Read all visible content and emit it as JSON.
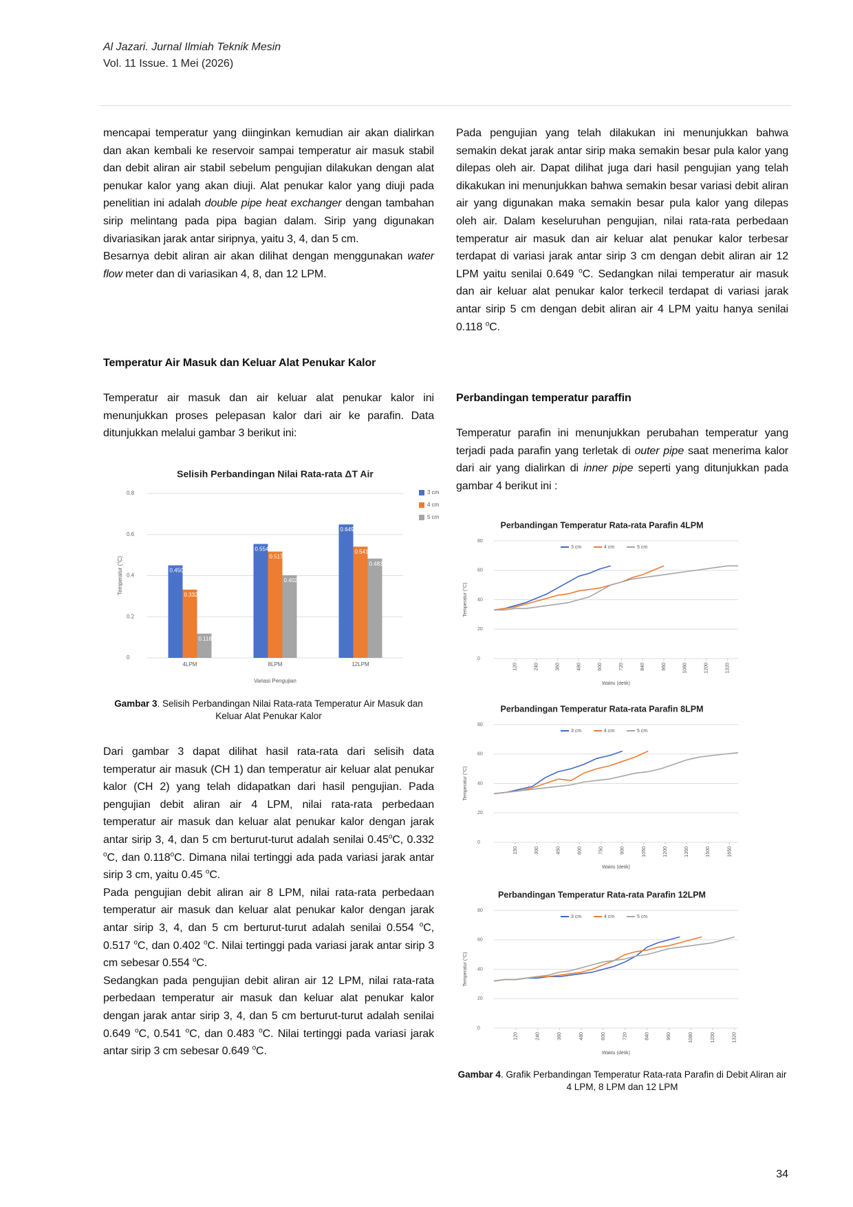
{
  "header": {
    "journal": "Al Jazari. Jurnal Ilmiah Teknik Mesin",
    "issue": "Vol. 11 Issue. 1 Mei (2026)"
  },
  "left": {
    "p1": [
      "mencapai temperatur yang diinginkan kemudian air akan dialirkan dan akan kembali ke reservoir sampai temperatur air masuk stabil dan debit aliran air stabil sebelum pengujian dilakukan dengan alat penukar kalor yang akan diuji. Alat penukar kalor yang diuji pada penelitian ini adalah ",
      "double pipe heat exchanger",
      " dengan tambahan sirip melintang pada pipa bagian dalam. Sirip yang digunakan divariasikan jarak antar siripnya, yaitu 3, 4, dan 5 cm."
    ],
    "p2": [
      "Besarnya debit aliran air akan dilihat dengan menggunakan ",
      "water flow",
      " meter dan di variasikan 4, 8, dan 12 LPM."
    ],
    "heading": "Temperatur Air Masuk dan Keluar Alat Penukar Kalor",
    "p3": "Temperatur air masuk dan air keluar alat penukar kalor ini menunjukkan proses pelepasan kalor dari air ke parafin. Data ditunjukkan melalui gambar 3 berikut ini:",
    "caption": [
      "Gambar 3",
      ". Selisih Perbandingan Nilai Rata-rata Temperatur Air Masuk dan Keluar Alat Penukar Kalor"
    ],
    "p4": [
      "Dari gambar 3 dapat dilihat hasil rata-rata dari selisih data temperatur air masuk (CH 1) dan temperatur air keluar alat penukar kalor (CH 2) yang telah didapatkan dari hasil pengujian. Pada pengujian debit aliran air 4 LPM, nilai rata-rata perbedaan temperatur air masuk dan keluar alat penukar kalor dengan jarak antar sirip 3, 4, dan 5 cm berturut-turut adalah senilai 0.45",
      "o",
      "C, 0.332 ",
      "o",
      "C, dan 0.118",
      "o",
      "C. Dimana nilai tertinggi ada pada variasi jarak antar sirip 3 cm, yaitu 0.45 ",
      "o",
      "C."
    ],
    "p5": [
      "Pada pengujian debit aliran air 8 LPM, nilai rata-rata perbedaan temperatur air masuk dan keluar alat penukar kalor dengan jarak antar sirip 3, 4, dan 5 cm berturut-turut adalah senilai 0.554 ",
      "o",
      "C, 0.517 ",
      "o",
      "C, dan 0.402 ",
      "o",
      "C. Nilai tertinggi pada variasi jarak antar sirip 3 cm sebesar 0.554 ",
      "o",
      "C."
    ],
    "p6": [
      "Sedangkan pada pengujian debit aliran air 12 LPM, nilai rata-rata perbedaan temperatur air masuk dan keluar alat penukar kalor dengan jarak antar sirip 3, 4, dan 5 cm berturut-turut adalah senilai 0.649 ",
      "o",
      "C, 0.541 ",
      "o",
      "C, dan 0.483 ",
      "o",
      "C. Nilai tertinggi pada variasi jarak antar sirip 3 cm sebesar 0.649 ",
      "o",
      "C."
    ]
  },
  "right": {
    "p1": [
      "Pada pengujian yang telah dilakukan ini menunjukkan bahwa semakin dekat jarak antar sirip maka semakin besar pula kalor yang dilepas oleh air. Dapat dilihat juga dari hasil pengujian yang telah dikakukan ini menunjukkan bahwa semakin besar variasi debit aliran air yang digunakan maka semakin besar pula kalor yang dilepas oleh air. Dalam keseluruhan pengujian, nilai rata-rata perbedaan temperatur air masuk dan air keluar alat penukar kalor terbesar terdapat di variasi jarak antar sirip 3 cm dengan debit aliran air 12 LPM yaitu senilai 0.649 ",
      "o",
      "C. Sedangkan nilai temperatur air masuk dan air keluar alat penukar kalor terkecil terdapat di variasi jarak antar sirip 5 cm dengan debit aliran air 4 LPM yaitu hanya senilai 0.118 ",
      "o",
      "C."
    ],
    "heading": "Perbandingan temperatur paraffin",
    "p2": [
      "Temperatur parafin ini menunjukkan perubahan temperatur yang terjadi pada parafin yang terletak di ",
      "outer pipe",
      " saat menerima kalor dari air yang dialirkan di ",
      "inner pipe",
      " seperti yang ditunjukkan pada gambar 4 berikut ini :"
    ],
    "caption": [
      "Gambar 4",
      ". Grafik Perbandingan Temperatur Rata-rata Parafin di Debit Aliran air 4 LPM, 8 LPM dan 12 LPM"
    ]
  },
  "page_number": "34",
  "chart_data": [
    {
      "type": "bar",
      "title": "Selisih Perbandingan Nilai Rata-rata ΔT Air",
      "x_label": "Variasi Pengujian",
      "y_label": "Temperatur (°C)",
      "categories": [
        "4LPM",
        "8LPM",
        "12LPM"
      ],
      "series": [
        {
          "name": "3 cm",
          "color": "#4a72c9",
          "values": [
            0.45,
            0.554,
            0.649
          ],
          "value_labels": [
            "0.450",
            "0.554",
            "0.649"
          ]
        },
        {
          "name": "4 cm",
          "color": "#ed7d31",
          "values": [
            0.332,
            0.517,
            0.541
          ],
          "value_labels": [
            "0.332",
            "0.517",
            "0.541"
          ]
        },
        {
          "name": "5 cm",
          "color": "#a5a5a5",
          "values": [
            0.118,
            0.402,
            0.483
          ],
          "value_labels": [
            "0.118",
            "0.402",
            "0.483"
          ]
        }
      ],
      "ylim": [
        0,
        0.8
      ],
      "yticks": [
        0,
        0.2,
        0.4,
        0.6,
        0.8
      ],
      "grid": true,
      "legend": "right"
    },
    {
      "type": "line",
      "title": "Perbandingan Temperatur Rata-rata Parafin 4LPM",
      "x_label": "Waktu (detik)",
      "y_label": "Temperatur (°C)",
      "x": [
        0,
        60,
        120,
        180,
        240,
        300,
        360,
        420,
        480,
        540,
        600,
        660,
        720,
        780,
        840,
        900,
        960,
        1020,
        1080,
        1140,
        1200,
        1260,
        1320,
        1380
      ],
      "series": [
        {
          "name": "3 cm",
          "color": "#3f68c4",
          "values": [
            33,
            34,
            36,
            38,
            41,
            44,
            48,
            52,
            56,
            58,
            61,
            63,
            null,
            null,
            null,
            null,
            null,
            null,
            null,
            null,
            null,
            null,
            null,
            null
          ]
        },
        {
          "name": "4 cm",
          "color": "#ed7d31",
          "values": [
            33,
            34,
            35,
            37,
            39,
            41,
            43,
            44,
            46,
            47,
            48,
            50,
            52,
            55,
            57,
            60,
            63,
            null,
            null,
            null,
            null,
            null,
            null,
            null
          ]
        },
        {
          "name": "5 cm",
          "color": "#a5a5a5",
          "values": [
            33,
            33,
            34,
            34,
            35,
            36,
            37,
            38,
            40,
            42,
            46,
            50,
            52,
            54,
            55,
            56,
            57,
            58,
            59,
            60,
            61,
            62,
            63,
            63
          ]
        }
      ],
      "xlim": [
        0,
        1380
      ],
      "xticks": [
        120,
        240,
        360,
        480,
        600,
        720,
        840,
        960,
        1080,
        1200,
        1320
      ],
      "ylim": [
        0,
        80
      ],
      "yticks": [
        0,
        20,
        40,
        60,
        80
      ],
      "grid": true,
      "legend": "top"
    },
    {
      "type": "line",
      "title": "Perbandingan Temperatur Rata-rata Parafin 8LPM",
      "x_label": "Waktu (detik)",
      "y_label": "Temperatur (°C)",
      "x": [
        0,
        90,
        180,
        270,
        360,
        450,
        540,
        630,
        720,
        810,
        900,
        990,
        1080,
        1170,
        1260,
        1350,
        1440,
        1530,
        1620,
        1710
      ],
      "series": [
        {
          "name": "3 cm",
          "color": "#3f68c4",
          "values": [
            33,
            34,
            36,
            38,
            44,
            48,
            50,
            53,
            57,
            59,
            62,
            null,
            null,
            null,
            null,
            null,
            null,
            null,
            null,
            null
          ]
        },
        {
          "name": "4 cm",
          "color": "#ed7d31",
          "values": [
            33,
            34,
            35,
            37,
            40,
            43,
            42,
            47,
            50,
            52,
            55,
            58,
            62,
            null,
            null,
            null,
            null,
            null,
            null,
            null
          ]
        },
        {
          "name": "5 cm",
          "color": "#a5a5a5",
          "values": [
            33,
            34,
            35,
            36,
            37,
            38,
            39,
            41,
            42,
            43,
            45,
            47,
            48,
            50,
            53,
            56,
            58,
            59,
            60,
            61
          ]
        }
      ],
      "xlim": [
        0,
        1710
      ],
      "xticks": [
        150,
        300,
        450,
        600,
        750,
        900,
        1050,
        1200,
        1350,
        1500,
        1650
      ],
      "ylim": [
        0,
        80
      ],
      "yticks": [
        0,
        20,
        40,
        60,
        80
      ],
      "grid": true,
      "legend": "top"
    },
    {
      "type": "line",
      "title": "Perbandingan Temperatur Rata-rata Parafin 12LPM",
      "x_label": "Waktu (detik)",
      "y_label": "Temperatur (°C)",
      "x": [
        0,
        60,
        120,
        180,
        240,
        300,
        360,
        420,
        480,
        540,
        600,
        660,
        720,
        780,
        840,
        900,
        960,
        1020,
        1080,
        1140,
        1200,
        1260,
        1320
      ],
      "series": [
        {
          "name": "3 cm",
          "color": "#3f68c4",
          "values": [
            32,
            33,
            33,
            34,
            34,
            35,
            35,
            36,
            37,
            38,
            40,
            42,
            45,
            49,
            55,
            58,
            60,
            62,
            null,
            null,
            null,
            null,
            null
          ]
        },
        {
          "name": "4 cm",
          "color": "#ed7d31",
          "values": [
            32,
            33,
            33,
            34,
            35,
            35,
            36,
            37,
            38,
            40,
            43,
            46,
            50,
            52,
            53,
            55,
            56,
            58,
            60,
            62,
            null,
            null,
            null
          ]
        },
        {
          "name": "5 cm",
          "color": "#a5a5a5",
          "values": [
            32,
            33,
            33,
            34,
            35,
            36,
            38,
            39,
            41,
            43,
            45,
            46,
            47,
            49,
            50,
            52,
            54,
            55,
            56,
            57,
            58,
            60,
            62
          ]
        }
      ],
      "xlim": [
        0,
        1340
      ],
      "xticks": [
        120,
        240,
        360,
        480,
        600,
        720,
        840,
        960,
        1080,
        1200,
        1320
      ],
      "ylim": [
        0,
        80
      ],
      "yticks": [
        0,
        20,
        40,
        60,
        80
      ],
      "grid": true,
      "legend": "top"
    }
  ]
}
